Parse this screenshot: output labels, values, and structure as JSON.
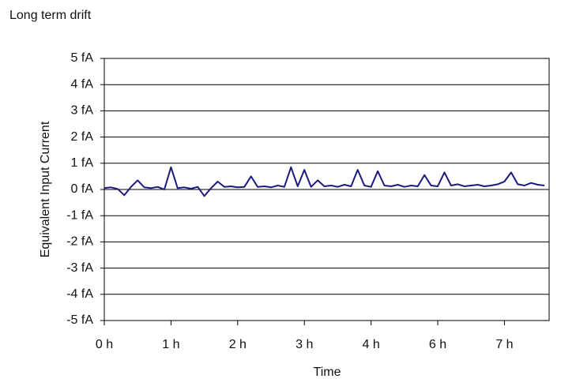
{
  "chart_data": {
    "type": "line",
    "title": "Long term drift",
    "y_label": "Equivalent Input Current",
    "x_label": "Time",
    "x": [
      0,
      0.1,
      0.2,
      0.3,
      0.4,
      0.5,
      0.6,
      0.7,
      0.8,
      0.9,
      1,
      1.1,
      1.2,
      1.3,
      1.4,
      1.5,
      1.6,
      1.7,
      1.8,
      1.9,
      2,
      2.1,
      2.2,
      2.3,
      2.4,
      2.5,
      2.6,
      2.7,
      2.8,
      2.9,
      3,
      3.1,
      3.2,
      3.3,
      3.4,
      3.5,
      3.6,
      3.7,
      3.8,
      3.9,
      4,
      4.1,
      4.2,
      4.3,
      4.4,
      4.5,
      4.6,
      4.7,
      4.8,
      4.9,
      5,
      5.1,
      5.2,
      5.3,
      5.4,
      5.5,
      5.6,
      5.7,
      5.8,
      5.9,
      6,
      6.1,
      6.2,
      6.3,
      6.4,
      6.5,
      6.6
    ],
    "series": [
      {
        "color": "#1a1a80",
        "values": [
          0.05,
          0.08,
          0.02,
          -0.22,
          0.1,
          0.35,
          0.08,
          0.05,
          0.1,
          0,
          0.85,
          0.05,
          0.08,
          0.03,
          0.1,
          -0.25,
          0.05,
          0.3,
          0.1,
          0.12,
          0.08,
          0.1,
          0.5,
          0.1,
          0.12,
          0.08,
          0.15,
          0.1,
          0.85,
          0.12,
          0.75,
          0.1,
          0.35,
          0.12,
          0.15,
          0.1,
          0.18,
          0.12,
          0.75,
          0.15,
          0.1,
          0.7,
          0.15,
          0.12,
          0.18,
          0.1,
          0.15,
          0.12,
          0.55,
          0.15,
          0.12,
          0.65,
          0.15,
          0.2,
          0.12,
          0.15,
          0.18,
          0.12,
          0.15,
          0.2,
          0.3,
          0.65,
          0.2,
          0.15,
          0.25,
          0.18,
          0.15
        ]
      }
    ],
    "xlim": [
      0,
      6.67
    ],
    "xtick_labels": [
      "0 h",
      "1 h",
      "2 h",
      "3 h",
      "4 h",
      "6 h",
      "7 h"
    ],
    "ylim": [
      -5,
      5
    ],
    "yticks": [
      {
        "value": -5,
        "label": "-5 fA"
      },
      {
        "value": -4,
        "label": "-4 fA"
      },
      {
        "value": -3,
        "label": "-3 fA"
      },
      {
        "value": -2,
        "label": "-2 fA"
      },
      {
        "value": -1,
        "label": "-1 fA"
      },
      {
        "value": 0,
        "label": "0 fA"
      },
      {
        "value": 1,
        "label": "1 fA"
      },
      {
        "value": 2,
        "label": "2 fA"
      },
      {
        "value": 3,
        "label": "3 fA"
      },
      {
        "value": 4,
        "label": "4 fA"
      },
      {
        "value": 5,
        "label": "5 fA"
      }
    ],
    "grid": true
  }
}
